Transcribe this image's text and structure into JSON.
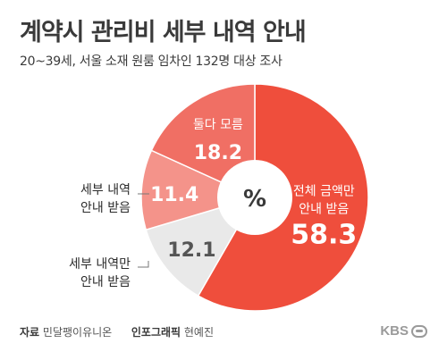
{
  "title": "계약시 관리비 세부 내역 안내",
  "subtitle": "20~39세, 서울 소재 원룸 임차인 132명 대상 조사",
  "chart_data": {
    "type": "pie",
    "center_label": "%",
    "slices": [
      {
        "label_lines": [
          "전체 금액만",
          "안내 받음"
        ],
        "value": 58.3,
        "color": "#ef4e3c",
        "value_text": "58.3"
      },
      {
        "label_lines": [
          "세부 내역만",
          "안내 받음"
        ],
        "value": 12.1,
        "color": "#e9e9e9",
        "value_text": "12.1"
      },
      {
        "label_lines": [
          "세부 내역",
          "안내 받음"
        ],
        "value": 11.4,
        "color": "#f4938a",
        "value_text": "11.4"
      },
      {
        "label_lines": [
          "둘다 모름"
        ],
        "value": 18.2,
        "color": "#f06f64",
        "value_text": "18.2"
      }
    ]
  },
  "footer": {
    "source_key": "자료",
    "source_value": "민달팽이유니온",
    "graphic_key": "인포그래픽",
    "graphic_value": "현예진"
  },
  "logo": "KBS"
}
